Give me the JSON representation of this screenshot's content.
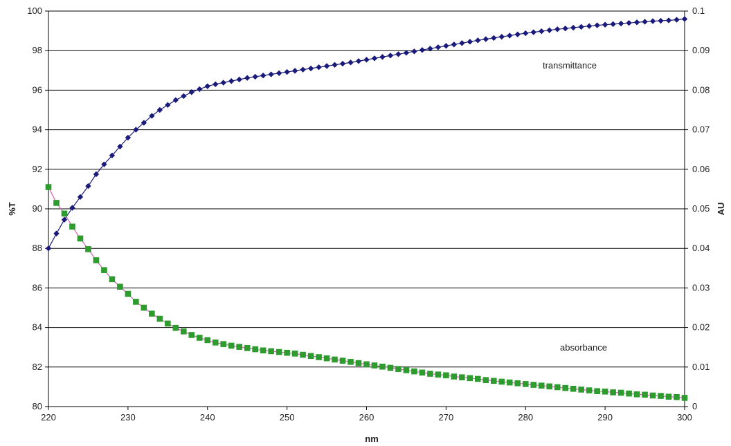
{
  "chart_data": {
    "type": "line",
    "title": "",
    "xlabel": "nm",
    "ylabel": "%T",
    "y2label": "AU",
    "xlim": [
      220,
      300
    ],
    "ylim": [
      80,
      100
    ],
    "y2lim": [
      0,
      0.1
    ],
    "x_ticks": [
      "220",
      "230",
      "240",
      "250",
      "260",
      "270",
      "280",
      "290",
      "300"
    ],
    "y_ticks": [
      "80",
      "82",
      "84",
      "86",
      "88",
      "90",
      "92",
      "94",
      "96",
      "98",
      "100"
    ],
    "y2_ticks": [
      "0",
      "0.01",
      "0.02",
      "0.03",
      "0.04",
      "0.05",
      "0.06",
      "0.07",
      "0.08",
      "0.09",
      "0.1"
    ],
    "grid": true,
    "annotations": [
      "transmittance",
      "absorbance"
    ],
    "colors": {
      "transmittance": "#1a1a7a",
      "absorbance": "#2e9b2e",
      "absorbance_line": "#d060b0"
    },
    "series": [
      {
        "axis": "left",
        "marker": "diamond",
        "x": [
          220,
          221,
          222,
          223,
          224,
          225,
          226,
          227,
          228,
          229,
          230,
          231,
          232,
          233,
          234,
          235,
          236,
          237,
          238,
          239,
          240,
          241,
          242,
          243,
          244,
          245,
          246,
          247,
          248,
          249,
          250,
          251,
          252,
          253,
          254,
          255,
          256,
          257,
          258,
          259,
          260,
          261,
          262,
          263,
          264,
          265,
          266,
          267,
          268,
          269,
          270,
          271,
          272,
          273,
          274,
          275,
          276,
          277,
          278,
          279,
          280,
          281,
          282,
          283,
          284,
          285,
          286,
          287,
          288,
          289,
          290,
          291,
          292,
          293,
          294,
          295,
          296,
          297,
          298,
          299,
          300
        ],
        "values": [
          88.0,
          88.75,
          89.45,
          90.05,
          90.6,
          91.15,
          91.75,
          92.25,
          92.7,
          93.15,
          93.6,
          94.0,
          94.35,
          94.7,
          95.0,
          95.25,
          95.5,
          95.7,
          95.9,
          96.05,
          96.2,
          96.3,
          96.38,
          96.46,
          96.54,
          96.62,
          96.68,
          96.74,
          96.8,
          96.86,
          96.92,
          96.98,
          97.04,
          97.1,
          97.16,
          97.22,
          97.28,
          97.34,
          97.4,
          97.47,
          97.54,
          97.61,
          97.68,
          97.75,
          97.82,
          97.89,
          97.96,
          98.03,
          98.1,
          98.17,
          98.24,
          98.31,
          98.38,
          98.45,
          98.52,
          98.58,
          98.64,
          98.7,
          98.76,
          98.82,
          98.88,
          98.93,
          98.98,
          99.03,
          99.08,
          99.12,
          99.16,
          99.2,
          99.24,
          99.28,
          99.31,
          99.34,
          99.37,
          99.4,
          99.43,
          99.46,
          99.49,
          99.51,
          99.53,
          99.56,
          99.6
        ]
      },
      {
        "axis": "right",
        "marker": "square",
        "x": [
          220,
          221,
          222,
          223,
          224,
          225,
          226,
          227,
          228,
          229,
          230,
          231,
          232,
          233,
          234,
          235,
          236,
          237,
          238,
          239,
          240,
          241,
          242,
          243,
          244,
          245,
          246,
          247,
          248,
          249,
          250,
          251,
          252,
          253,
          254,
          255,
          256,
          257,
          258,
          259,
          260,
          261,
          262,
          263,
          264,
          265,
          266,
          267,
          268,
          269,
          270,
          271,
          272,
          273,
          274,
          275,
          276,
          277,
          278,
          279,
          280,
          281,
          282,
          283,
          284,
          285,
          286,
          287,
          288,
          289,
          290,
          291,
          292,
          293,
          294,
          295,
          296,
          297,
          298,
          299,
          300
        ],
        "values": [
          0.0555,
          0.0515,
          0.0488,
          0.0455,
          0.0425,
          0.0398,
          0.037,
          0.0345,
          0.0322,
          0.0303,
          0.0285,
          0.0265,
          0.025,
          0.0235,
          0.0222,
          0.021,
          0.0199,
          0.019,
          0.0181,
          0.0174,
          0.0168,
          0.0162,
          0.0158,
          0.0154,
          0.0151,
          0.0148,
          0.0145,
          0.0142,
          0.014,
          0.0138,
          0.0136,
          0.0134,
          0.0131,
          0.0128,
          0.0125,
          0.0122,
          0.0119,
          0.0116,
          0.0113,
          0.011,
          0.0107,
          0.0104,
          0.0101,
          0.0098,
          0.0095,
          0.0092,
          0.0089,
          0.0086,
          0.0083,
          0.0081,
          0.0079,
          0.0076,
          0.0074,
          0.0072,
          0.007,
          0.0067,
          0.0065,
          0.0063,
          0.0061,
          0.0059,
          0.0057,
          0.0055,
          0.0053,
          0.0051,
          0.0049,
          0.0047,
          0.0045,
          0.0043,
          0.0041,
          0.0039,
          0.0038,
          0.0036,
          0.0035,
          0.0033,
          0.0031,
          0.003,
          0.0028,
          0.0027,
          0.0025,
          0.0024,
          0.0022
        ]
      }
    ]
  }
}
